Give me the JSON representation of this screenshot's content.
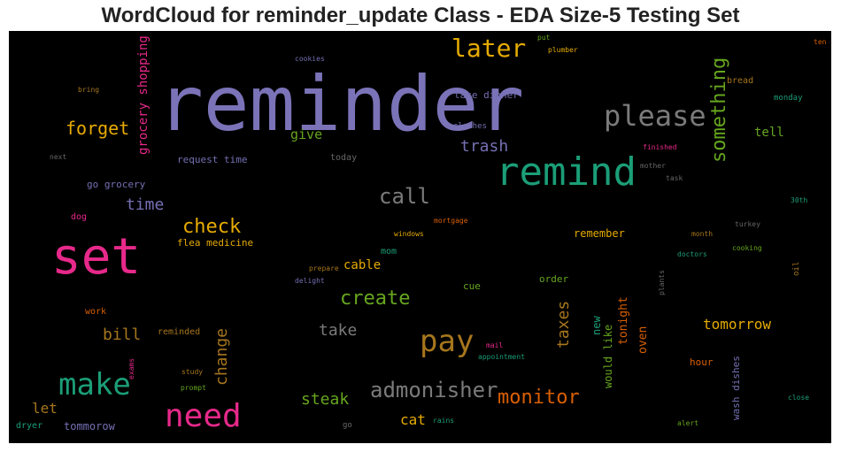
{
  "title": "WordCloud for reminder_update Class - EDA Size-5 Testing Set",
  "words": [
    {
      "text": "reminder",
      "color": "#7b73b8"
    },
    {
      "text": "set",
      "color": "#e7298a"
    },
    {
      "text": "remind",
      "color": "#1b9e77"
    },
    {
      "text": "need",
      "color": "#e7298a"
    },
    {
      "text": "make",
      "color": "#1b9e77"
    },
    {
      "text": "please",
      "color": "#7a7a7a"
    },
    {
      "text": "pay",
      "color": "#a6761d"
    },
    {
      "text": "later",
      "color": "#e6ab02"
    },
    {
      "text": "something",
      "color": "#66a61e"
    },
    {
      "text": "admonisher",
      "color": "#7a7a7a"
    },
    {
      "text": "call",
      "color": "#7a7a7a"
    },
    {
      "text": "check",
      "color": "#e6ab02"
    },
    {
      "text": "create",
      "color": "#66a61e"
    },
    {
      "text": "monitor",
      "color": "#d95f02"
    },
    {
      "text": "forget",
      "color": "#e6ab02"
    },
    {
      "text": "trash",
      "color": "#7570b3"
    },
    {
      "text": "take",
      "color": "#7a7a7a"
    },
    {
      "text": "time",
      "color": "#7570b3"
    },
    {
      "text": "steak",
      "color": "#66a61e"
    },
    {
      "text": "bill",
      "color": "#a6761d"
    },
    {
      "text": "change",
      "color": "#a6761d"
    },
    {
      "text": "taxes",
      "color": "#a6761d"
    },
    {
      "text": "tomorrow",
      "color": "#e6ab02"
    },
    {
      "text": "cat",
      "color": "#e6ab02"
    },
    {
      "text": "let",
      "color": "#a6761d"
    },
    {
      "text": "give",
      "color": "#66a61e"
    },
    {
      "text": "grocery shopping",
      "color": "#e7298a"
    },
    {
      "text": "tell",
      "color": "#66a61e"
    },
    {
      "text": "cable",
      "color": "#e6ab02"
    },
    {
      "text": "oven",
      "color": "#d95f02"
    },
    {
      "text": "tonight",
      "color": "#d95f02"
    },
    {
      "text": "would like",
      "color": "#66a61e"
    },
    {
      "text": "new",
      "color": "#1b9e77"
    },
    {
      "text": "remember",
      "color": "#e6ab02"
    },
    {
      "text": "wash dishes",
      "color": "#7570b3"
    },
    {
      "text": "tommorow",
      "color": "#7570b3"
    },
    {
      "text": "flea medicine",
      "color": "#e6ab02"
    },
    {
      "text": "request time",
      "color": "#7570b3"
    },
    {
      "text": "go grocery",
      "color": "#7570b3"
    },
    {
      "text": "take dinner",
      "color": "#7570b3"
    },
    {
      "text": "hour",
      "color": "#d95f02"
    },
    {
      "text": "order",
      "color": "#66a61e"
    },
    {
      "text": "cue",
      "color": "#66a61e"
    },
    {
      "text": "reminded",
      "color": "#a6761d"
    },
    {
      "text": "work",
      "color": "#d95f02"
    },
    {
      "text": "dog",
      "color": "#e7298a"
    },
    {
      "text": "mom",
      "color": "#1b9e77"
    },
    {
      "text": "today",
      "color": "#666666"
    },
    {
      "text": "clothes",
      "color": "#7570b3"
    },
    {
      "text": "bread",
      "color": "#a6761d"
    },
    {
      "text": "monday",
      "color": "#1b9e77"
    },
    {
      "text": "finished",
      "color": "#e7298a"
    },
    {
      "text": "mother",
      "color": "#666666"
    },
    {
      "text": "task",
      "color": "#666666"
    },
    {
      "text": "30th",
      "color": "#1b9e77"
    },
    {
      "text": "turkey",
      "color": "#666666"
    },
    {
      "text": "month",
      "color": "#a6761d"
    },
    {
      "text": "cooking",
      "color": "#66a61e"
    },
    {
      "text": "doctors",
      "color": "#1b9e77"
    },
    {
      "text": "oil",
      "color": "#a6761d"
    },
    {
      "text": "plants",
      "color": "#666666"
    },
    {
      "text": "ten",
      "color": "#d95f02"
    },
    {
      "text": "put",
      "color": "#66a61e"
    },
    {
      "text": "plumber",
      "color": "#e6ab02"
    },
    {
      "text": "cookies",
      "color": "#7570b3"
    },
    {
      "text": "bring",
      "color": "#a6761d"
    },
    {
      "text": "next",
      "color": "#666666"
    },
    {
      "text": "windows",
      "color": "#e6ab02"
    },
    {
      "text": "mortgage",
      "color": "#d95f02"
    },
    {
      "text": "prepare",
      "color": "#a6761d"
    },
    {
      "text": "delight",
      "color": "#7570b3"
    },
    {
      "text": "mail",
      "color": "#e7298a"
    },
    {
      "text": "appointment",
      "color": "#1b9e77"
    },
    {
      "text": "study",
      "color": "#a6761d"
    },
    {
      "text": "prompt",
      "color": "#66a61e"
    },
    {
      "text": "exams",
      "color": "#e7298a"
    },
    {
      "text": "go",
      "color": "#666666"
    },
    {
      "text": "rains",
      "color": "#1b9e77"
    },
    {
      "text": "dryer",
      "color": "#1b9e77"
    },
    {
      "text": "close",
      "color": "#1b9e77"
    },
    {
      "text": "alert",
      "color": "#66a61e"
    }
  ]
}
